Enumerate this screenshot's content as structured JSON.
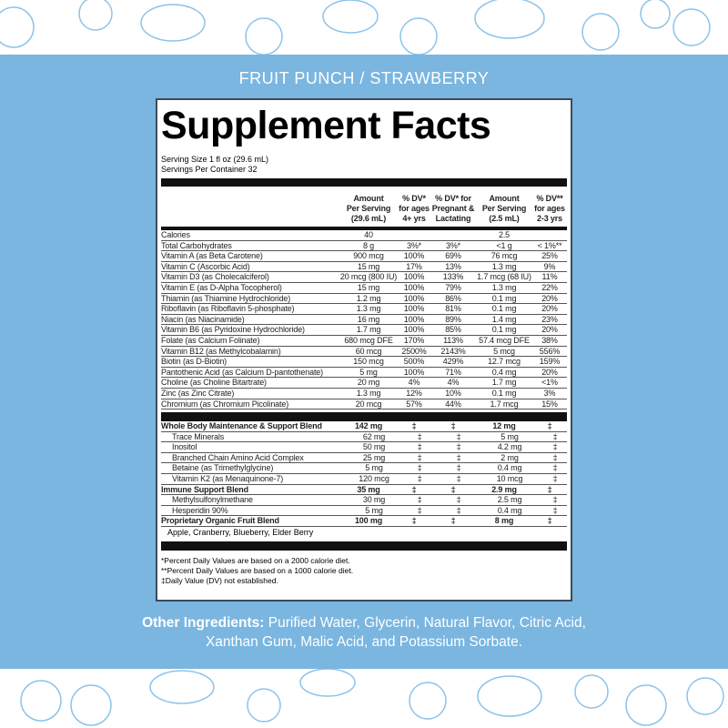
{
  "flavor": "FRUIT PUNCH / STRAWBERRY",
  "title": "Supplement Facts",
  "serving_size": "Serving Size 1 fl oz (29.6 mL)",
  "servings_per_container": "Servings Per Container 32",
  "headers": [
    "",
    "Amount\nPer Serving\n(29.6 mL)",
    "% DV*\nfor ages\n4+ yrs",
    "% DV* for\nPregnant &\nLactating",
    "Amount\nPer Serving\n(2.5 mL)",
    "% DV**\nfor ages\n2-3 yrs"
  ],
  "nutrients": [
    [
      "Calories",
      "40",
      "",
      "",
      "2.5",
      ""
    ],
    [
      "Total Carbohydrates",
      "8 g",
      "3%*",
      "3%*",
      "<1 g",
      "< 1%**"
    ],
    [
      "Vitamin A (as Beta Carotene)",
      "900 mcg",
      "100%",
      "69%",
      "76 mcg",
      "25%"
    ],
    [
      "Vitamin C (Ascorbic Acid)",
      "15 mg",
      "17%",
      "13%",
      "1.3 mg",
      "9%"
    ],
    [
      "Vitamin D3 (as Cholecalciferol)",
      "20 mcg (800 IU)",
      "100%",
      "133%",
      "1.7 mcg (68 IU)",
      "11%"
    ],
    [
      "Vitamin E (as D-Alpha Tocopherol)",
      "15 mg",
      "100%",
      "79%",
      "1.3 mg",
      "22%"
    ],
    [
      "Thiamin (as Thiamine Hydrochloride)",
      "1.2 mg",
      "100%",
      "86%",
      "0.1 mg",
      "20%"
    ],
    [
      "Riboflavin (as Riboflavin 5-phosphate)",
      "1.3 mg",
      "100%",
      "81%",
      "0.1 mg",
      "20%"
    ],
    [
      "Niacin (as Niacinamide)",
      "16 mg",
      "100%",
      "89%",
      "1.4 mg",
      "23%"
    ],
    [
      "Vitamin B6 (as Pyridoxine Hydrochloride)",
      "1.7 mg",
      "100%",
      "85%",
      "0.1 mg",
      "20%"
    ],
    [
      "Folate (as Calcium Folinate)",
      "680 mcg DFE",
      "170%",
      "113%",
      "57.4 mcg DFE",
      "38%"
    ],
    [
      "Vitamin B12 (as Methylcobalamin)",
      "60 mcg",
      "2500%",
      "2143%",
      "5 mcg",
      "556%"
    ],
    [
      "Biotin (as D-Biotin)",
      "150 mcg",
      "500%",
      "429%",
      "12.7 mcg",
      "159%"
    ],
    [
      "Pantothenic Acid (as Calcium D-pantothenate)",
      "5 mg",
      "100%",
      "71%",
      "0.4 mg",
      "20%"
    ],
    [
      "Choline (as Choline Bitartrate)",
      "20 mg",
      "4%",
      "4%",
      "1.7 mg",
      "<1%"
    ],
    [
      "Zinc (as Zinc Citrate)",
      "1.3 mg",
      "12%",
      "10%",
      "0.1 mg",
      "3%"
    ],
    [
      "Chromium (as Chromium Picolinate)",
      "20 mcg",
      "57%",
      "44%",
      "1.7 mcg",
      "15%"
    ]
  ],
  "blends": [
    {
      "cells": [
        "Whole Body Maintenance & Support Blend",
        "142 mg",
        "‡",
        "‡",
        "12 mg",
        "‡"
      ],
      "style": "bold"
    },
    {
      "cells": [
        "Trace Minerals",
        "62 mg",
        "‡",
        "‡",
        "5 mg",
        "‡"
      ],
      "style": "ind"
    },
    {
      "cells": [
        "Inositol",
        "50 mg",
        "‡",
        "‡",
        "4.2 mg",
        "‡"
      ],
      "style": "ind"
    },
    {
      "cells": [
        "Branched Chain Amino Acid Complex",
        "25 mg",
        "‡",
        "‡",
        "2 mg",
        "‡"
      ],
      "style": "ind"
    },
    {
      "cells": [
        "Betaine (as Trimethylglycine)",
        "5 mg",
        "‡",
        "‡",
        "0.4 mg",
        "‡"
      ],
      "style": "ind"
    },
    {
      "cells": [
        "Vitamin K2 (as Menaquinone-7)",
        "120 mcg",
        "‡",
        "‡",
        "10 mcg",
        "‡"
      ],
      "style": "ind"
    },
    {
      "cells": [
        "Immune Support Blend",
        "35 mg",
        "‡",
        "‡",
        "2.9 mg",
        "‡"
      ],
      "style": "bold"
    },
    {
      "cells": [
        "Methylsulfonylmethane",
        "30 mg",
        "‡",
        "‡",
        "2.5 mg",
        "‡"
      ],
      "style": "ind"
    },
    {
      "cells": [
        "Hesperidin 90%",
        "5 mg",
        "‡",
        "‡",
        "0.4 mg",
        "‡"
      ],
      "style": "ind"
    },
    {
      "cells": [
        "Proprietary Organic Fruit Blend",
        "100 mg",
        "‡",
        "‡",
        "8 mg",
        "‡"
      ],
      "style": "bold"
    }
  ],
  "fruit_blend_ingredients": "Apple, Cranberry, Blueberry, Elder Berry",
  "footnotes": [
    "*Percent Daily Values are based on a 2000 calorie diet.",
    "**Percent Daily Values are based on a 1000 calorie diet.",
    "‡Daily Value (DV) not established."
  ],
  "other_ingredients": {
    "label": "Other Ingredients:",
    "text": " Purified Water, Glycerin, Natural Flavor, Citric Acid, Xanthan Gum, Malic Acid, and Potassium Sorbate."
  },
  "colors": {
    "band": "#7ab6e0",
    "sketch": "#8cc3ea"
  }
}
